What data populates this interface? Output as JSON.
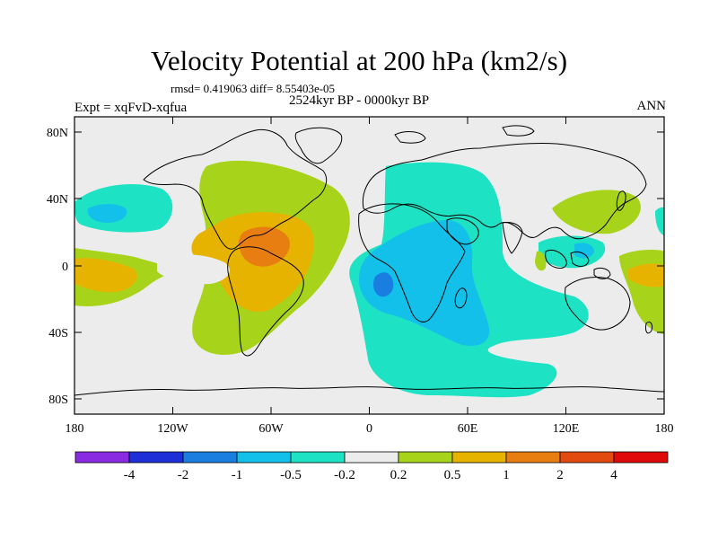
{
  "title": "Velocity Potential at 200 hPa (km2/s)",
  "stats": "rmsd= 0.419063 diff= 8.55403e-05",
  "period": "2524kyr BP - 0000kyr BP",
  "experiment": "Expt = xqFvD-xqfua",
  "season": "ANN",
  "axes": {
    "x_ticks": [
      "180",
      "120W",
      "60W",
      "0",
      "60E",
      "120E",
      "180"
    ],
    "y_ticks": [
      "80N",
      "40N",
      "0",
      "40S",
      "80S"
    ]
  },
  "colorbar": {
    "levels": [
      "-4",
      "-2",
      "-1",
      "-0.5",
      "-0.2",
      "0.2",
      "0.5",
      "1",
      "2",
      "4"
    ],
    "colors": [
      "#8a2be2",
      "#1e2fd8",
      "#1a7ee0",
      "#12c0ea",
      "#1ee2c4",
      "#ececec",
      "#a7d41a",
      "#e6b400",
      "#e87d12",
      "#e24a10",
      "#e00a0a"
    ]
  },
  "palette": {
    "background_neutral": "#ececec",
    "coast": "#000000"
  }
}
